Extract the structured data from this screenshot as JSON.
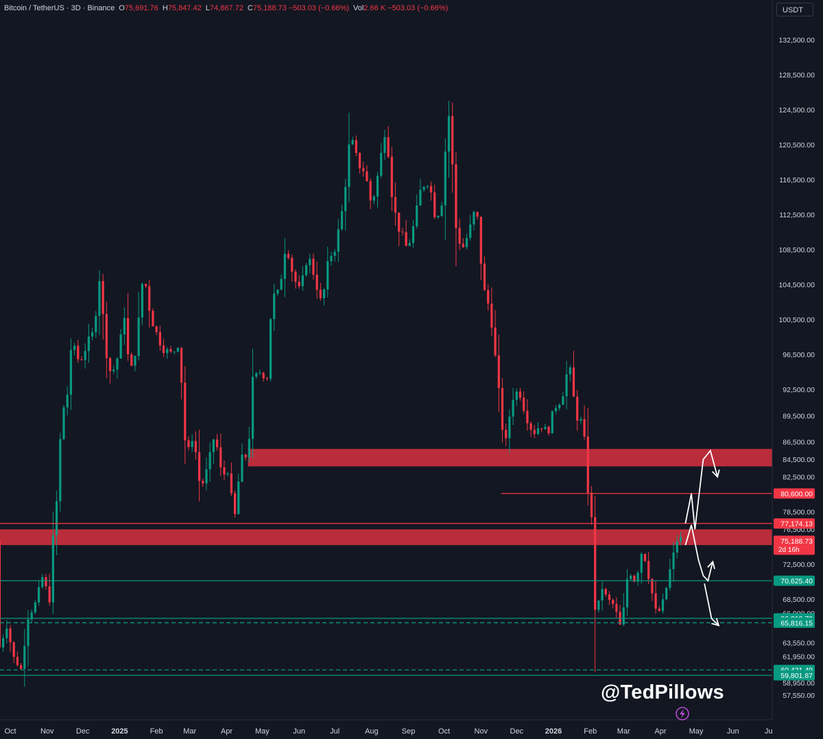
{
  "header": {
    "symbol": "Bitcoin / TetherUS · 3D · Binance",
    "o_label": "O",
    "o_value": "75,691.76",
    "h_label": "H",
    "h_value": "75,847.42",
    "l_label": "L",
    "l_value": "74,867.72",
    "c_label": "C",
    "c_value": "75,188.73",
    "change": "−503.03 (−0.66%)",
    "vol_label": "Vol",
    "vol_value": "2.66 K",
    "vol_change": "−503.03 (−0.66%)"
  },
  "currency_button": "USDT",
  "watermark": "@TedPillows",
  "chart_data": {
    "type": "candlestick",
    "interval": "3D",
    "up_color": "#089981",
    "down_color": "#f23645",
    "y_axis": {
      "ticks": [
        {
          "label": "132,500.00",
          "value": 132500
        },
        {
          "label": "128,500.00",
          "value": 128500
        },
        {
          "label": "124,500.00",
          "value": 124500
        },
        {
          "label": "120,500.00",
          "value": 120500
        },
        {
          "label": "116,500.00",
          "value": 116500
        },
        {
          "label": "112,500.00",
          "value": 112500
        },
        {
          "label": "108,500.00",
          "value": 108500
        },
        {
          "label": "104,500.00",
          "value": 104500
        },
        {
          "label": "100,500.00",
          "value": 100500
        },
        {
          "label": "96,500.00",
          "value": 96500
        },
        {
          "label": "92,500.00",
          "value": 92500
        },
        {
          "label": "89,500.00",
          "value": 89500
        },
        {
          "label": "86,500.00",
          "value": 86500
        },
        {
          "label": "84,500.00",
          "value": 84500
        },
        {
          "label": "82,500.00",
          "value": 82500
        },
        {
          "label": "78,500.00",
          "value": 78500
        },
        {
          "label": "76,500.00",
          "value": 76500
        },
        {
          "label": "72,500.00",
          "value": 72500
        },
        {
          "label": "68,500.00",
          "value": 68500
        },
        {
          "label": "66,900.00",
          "value": 66900
        },
        {
          "label": "63,550.00",
          "value": 63550
        },
        {
          "label": "61,950.00",
          "value": 61950
        },
        {
          "label": "58,950.00",
          "value": 58950
        },
        {
          "label": "57,550.00",
          "value": 57550
        }
      ]
    },
    "x_axis": {
      "ticks": [
        {
          "label": "Oct",
          "date": "2024-10-01",
          "bold": false
        },
        {
          "label": "Nov",
          "date": "2024-11-01",
          "bold": false
        },
        {
          "label": "Dec",
          "date": "2024-12-01",
          "bold": false
        },
        {
          "label": "2025",
          "date": "2025-01-01",
          "bold": true
        },
        {
          "label": "Feb",
          "date": "2025-02-01",
          "bold": false
        },
        {
          "label": "Mar",
          "date": "2025-03-01",
          "bold": false
        },
        {
          "label": "Apr",
          "date": "2025-04-01",
          "bold": false
        },
        {
          "label": "May",
          "date": "2025-05-01",
          "bold": false
        },
        {
          "label": "Jun",
          "date": "2025-06-01",
          "bold": false
        },
        {
          "label": "Jul",
          "date": "2025-07-01",
          "bold": false
        },
        {
          "label": "Aug",
          "date": "2025-08-01",
          "bold": false
        },
        {
          "label": "Sep",
          "date": "2025-09-01",
          "bold": false
        },
        {
          "label": "Oct",
          "date": "2025-10-01",
          "bold": false
        },
        {
          "label": "Nov",
          "date": "2025-11-01",
          "bold": false
        },
        {
          "label": "Dec",
          "date": "2025-12-01",
          "bold": false
        },
        {
          "label": "2026",
          "date": "2026-01-01",
          "bold": true
        },
        {
          "label": "Feb",
          "date": "2026-02-01",
          "bold": false
        },
        {
          "label": "Mar",
          "date": "2026-03-01",
          "bold": false
        },
        {
          "label": "Apr",
          "date": "2026-04-01",
          "bold": false
        },
        {
          "label": "May",
          "date": "2026-05-01",
          "bold": false
        },
        {
          "label": "Jun",
          "date": "2026-06-01",
          "bold": false
        },
        {
          "label": "Ju",
          "date": "2026-07-01",
          "bold": false
        }
      ]
    },
    "price_path": [
      [
        "2024-09-22",
        63000
      ],
      [
        "2024-09-28",
        65500
      ],
      [
        "2024-10-04",
        61800
      ],
      [
        "2024-10-10",
        60500
      ],
      [
        "2024-10-16",
        66500
      ],
      [
        "2024-10-22",
        68000
      ],
      [
        "2024-10-28",
        71000
      ],
      [
        "2024-11-03",
        68500
      ],
      [
        "2024-11-06",
        75500
      ],
      [
        "2024-11-10",
        81000
      ],
      [
        "2024-11-13",
        89500
      ],
      [
        "2024-11-19",
        92500
      ],
      [
        "2024-11-22",
        98500
      ],
      [
        "2024-11-28",
        95500
      ],
      [
        "2024-12-04",
        97500
      ],
      [
        "2024-12-10",
        99000
      ],
      [
        "2024-12-16",
        106500
      ],
      [
        "2024-12-19",
        98000
      ],
      [
        "2024-12-25",
        94000
      ],
      [
        "2024-12-31",
        96500
      ],
      [
        "2025-01-06",
        102000
      ],
      [
        "2025-01-09",
        93500
      ],
      [
        "2025-01-15",
        97500
      ],
      [
        "2025-01-21",
        106000
      ],
      [
        "2025-01-27",
        101000
      ],
      [
        "2025-02-02",
        98500
      ],
      [
        "2025-02-08",
        97000
      ],
      [
        "2025-02-14",
        96500
      ],
      [
        "2025-02-20",
        98000
      ],
      [
        "2025-02-26",
        84500
      ],
      [
        "2025-03-04",
        87500
      ],
      [
        "2025-03-10",
        81000
      ],
      [
        "2025-03-16",
        83500
      ],
      [
        "2025-03-22",
        87500
      ],
      [
        "2025-03-28",
        82500
      ],
      [
        "2025-04-03",
        83500
      ],
      [
        "2025-04-07",
        76800
      ],
      [
        "2025-04-13",
        84500
      ],
      [
        "2025-04-19",
        85000
      ],
      [
        "2025-04-23",
        93500
      ],
      [
        "2025-04-29",
        94500
      ],
      [
        "2025-05-05",
        94000
      ],
      [
        "2025-05-09",
        103000
      ],
      [
        "2025-05-15",
        103500
      ],
      [
        "2025-05-21",
        109500
      ],
      [
        "2025-05-27",
        105500
      ],
      [
        "2025-06-02",
        103500
      ],
      [
        "2025-06-08",
        108000
      ],
      [
        "2025-06-14",
        105500
      ],
      [
        "2025-06-20",
        102000
      ],
      [
        "2025-06-26",
        107500
      ],
      [
        "2025-07-02",
        109000
      ],
      [
        "2025-07-08",
        113500
      ],
      [
        "2025-07-14",
        121500
      ],
      [
        "2025-07-20",
        118500
      ],
      [
        "2025-07-26",
        117500
      ],
      [
        "2025-08-01",
        113500
      ],
      [
        "2025-08-07",
        117500
      ],
      [
        "2025-08-13",
        123000
      ],
      [
        "2025-08-19",
        113500
      ],
      [
        "2025-08-25",
        110500
      ],
      [
        "2025-08-31",
        108500
      ],
      [
        "2025-09-06",
        111500
      ],
      [
        "2025-09-12",
        115800
      ],
      [
        "2025-09-18",
        116500
      ],
      [
        "2025-09-24",
        112000
      ],
      [
        "2025-09-30",
        114500
      ],
      [
        "2025-10-03",
        122500
      ],
      [
        "2025-10-06",
        124500
      ],
      [
        "2025-10-10",
        111500
      ],
      [
        "2025-10-16",
        108500
      ],
      [
        "2025-10-22",
        110500
      ],
      [
        "2025-10-28",
        113500
      ],
      [
        "2025-11-03",
        104000
      ],
      [
        "2025-11-09",
        101500
      ],
      [
        "2025-11-15",
        93500
      ],
      [
        "2025-11-21",
        85500
      ],
      [
        "2025-11-27",
        91500
      ],
      [
        "2025-12-03",
        92500
      ],
      [
        "2025-12-09",
        89500
      ],
      [
        "2025-12-15",
        87500
      ],
      [
        "2025-12-21",
        88500
      ],
      [
        "2025-12-27",
        87500
      ],
      [
        "2026-01-02",
        90500
      ],
      [
        "2026-01-08",
        91500
      ],
      [
        "2026-01-14",
        95500
      ],
      [
        "2026-01-20",
        89500
      ],
      [
        "2026-01-26",
        88500
      ],
      [
        "2026-01-30",
        81000
      ],
      [
        "2026-02-03",
        76500
      ],
      [
        "2026-02-06",
        63000
      ],
      [
        "2026-02-09",
        70500
      ],
      [
        "2026-02-15",
        68500
      ],
      [
        "2026-02-21",
        67800
      ],
      [
        "2026-02-27",
        65000
      ],
      [
        "2026-03-05",
        72000
      ],
      [
        "2026-03-11",
        70500
      ],
      [
        "2026-03-17",
        74500
      ],
      [
        "2026-03-23",
        70500
      ],
      [
        "2026-03-29",
        66500
      ],
      [
        "2026-04-04",
        68500
      ],
      [
        "2026-04-10",
        72500
      ],
      [
        "2026-04-16",
        75800
      ],
      [
        "2026-04-19",
        75189
      ]
    ],
    "zones": [
      {
        "from": 83700,
        "to": 85700,
        "color": "#d9303f",
        "start_date": "2025-04-19"
      },
      {
        "from": 74700,
        "to": 76500,
        "color": "#d9303f",
        "start_date": "2024-09-20"
      }
    ],
    "levels": [
      {
        "value": 80600,
        "label": "80,600.00",
        "color": "#f23645",
        "style": "solid",
        "start_date": "2025-11-18"
      },
      {
        "value": 77174.13,
        "label": "77,174.13",
        "color": "#f23645",
        "style": "solid",
        "start_date": "2024-09-20"
      },
      {
        "value": 70625.4,
        "label": "70,625.40",
        "color": "#089981",
        "style": "solid",
        "start_date": "2024-09-20"
      },
      {
        "value": 66318.7,
        "label": "66,318.70",
        "color": "#089981",
        "style": "solid",
        "start_date": "2024-09-20"
      },
      {
        "value": 65816.15,
        "label": "65,816.15",
        "color": "#089981",
        "style": "dashed",
        "start_date": "2024-09-20"
      },
      {
        "value": 60421.49,
        "label": "60,421.49",
        "color": "#089981",
        "style": "dashed",
        "start_date": "2024-09-20"
      },
      {
        "value": 59801.87,
        "label": "59,801.87",
        "color": "#089981",
        "style": "solid",
        "start_date": "2024-09-20"
      }
    ],
    "current_price": {
      "value": 75188.73,
      "label": "75,188.73",
      "countdown": "2d 16h",
      "color": "#f23645"
    },
    "projection_paths": [
      [
        [
          "2026-04-22",
          77174
        ],
        [
          "2026-04-27",
          80600
        ],
        [
          "2026-04-30",
          76500
        ],
        [
          "2026-05-07",
          84500
        ],
        [
          "2026-05-13",
          85500
        ],
        [
          "2026-05-19",
          82500
        ]
      ],
      [
        [
          "2026-04-22",
          74700
        ],
        [
          "2026-04-27",
          77000
        ],
        [
          "2026-05-03",
          73000
        ],
        [
          "2026-05-07",
          71200
        ],
        [
          "2026-05-11",
          70625
        ],
        [
          "2026-05-15",
          72800
        ]
      ],
      [
        [
          "2026-05-08",
          70300
        ],
        [
          "2026-05-14",
          66300
        ],
        [
          "2026-05-20",
          65500
        ]
      ]
    ]
  }
}
